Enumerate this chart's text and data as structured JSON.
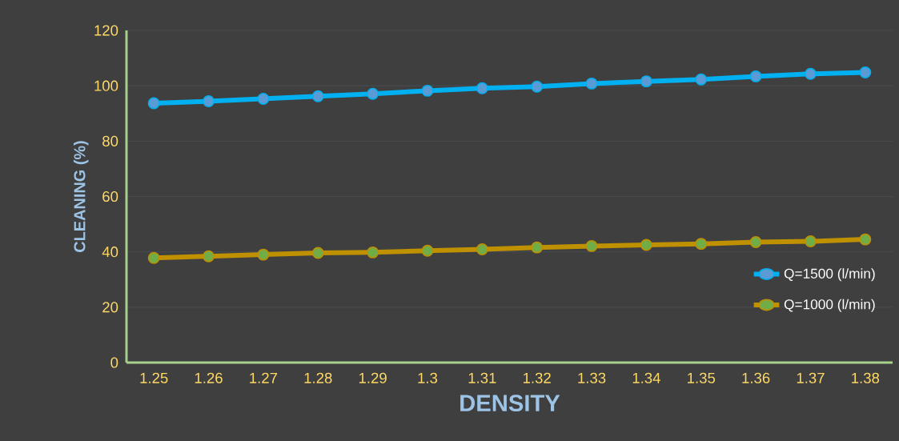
{
  "chart_data": {
    "type": "line",
    "categories": [
      "1.25",
      "1.26",
      "1.27",
      "1.28",
      "1.29",
      "1.3",
      "1.31",
      "1.32",
      "1.33",
      "1.34",
      "1.35",
      "1.36",
      "1.37",
      "1.38"
    ],
    "series": [
      {
        "name": "Q=1500 (l/min)",
        "color": "#00b0f0",
        "values": [
          93.7,
          94.4,
          95.3,
          96.2,
          97.1,
          98.2,
          99.1,
          99.7,
          100.8,
          101.6,
          102.3,
          103.4,
          104.3,
          104.8
        ]
      },
      {
        "name": "Q=1000 (l/min)",
        "color": "#bf9000",
        "values": [
          37.8,
          38.4,
          39.0,
          39.6,
          39.8,
          40.4,
          40.9,
          41.6,
          42.1,
          42.5,
          42.9,
          43.5,
          43.8,
          44.5
        ]
      }
    ],
    "xlabel": "DENSITY",
    "ylabel": "CLEANING (%)",
    "ylim": [
      0,
      120
    ],
    "yticks": [
      0,
      20,
      40,
      60,
      80,
      100,
      120
    ],
    "grid": "y",
    "legend": "right",
    "marker": "circle",
    "line_style": "solid"
  }
}
